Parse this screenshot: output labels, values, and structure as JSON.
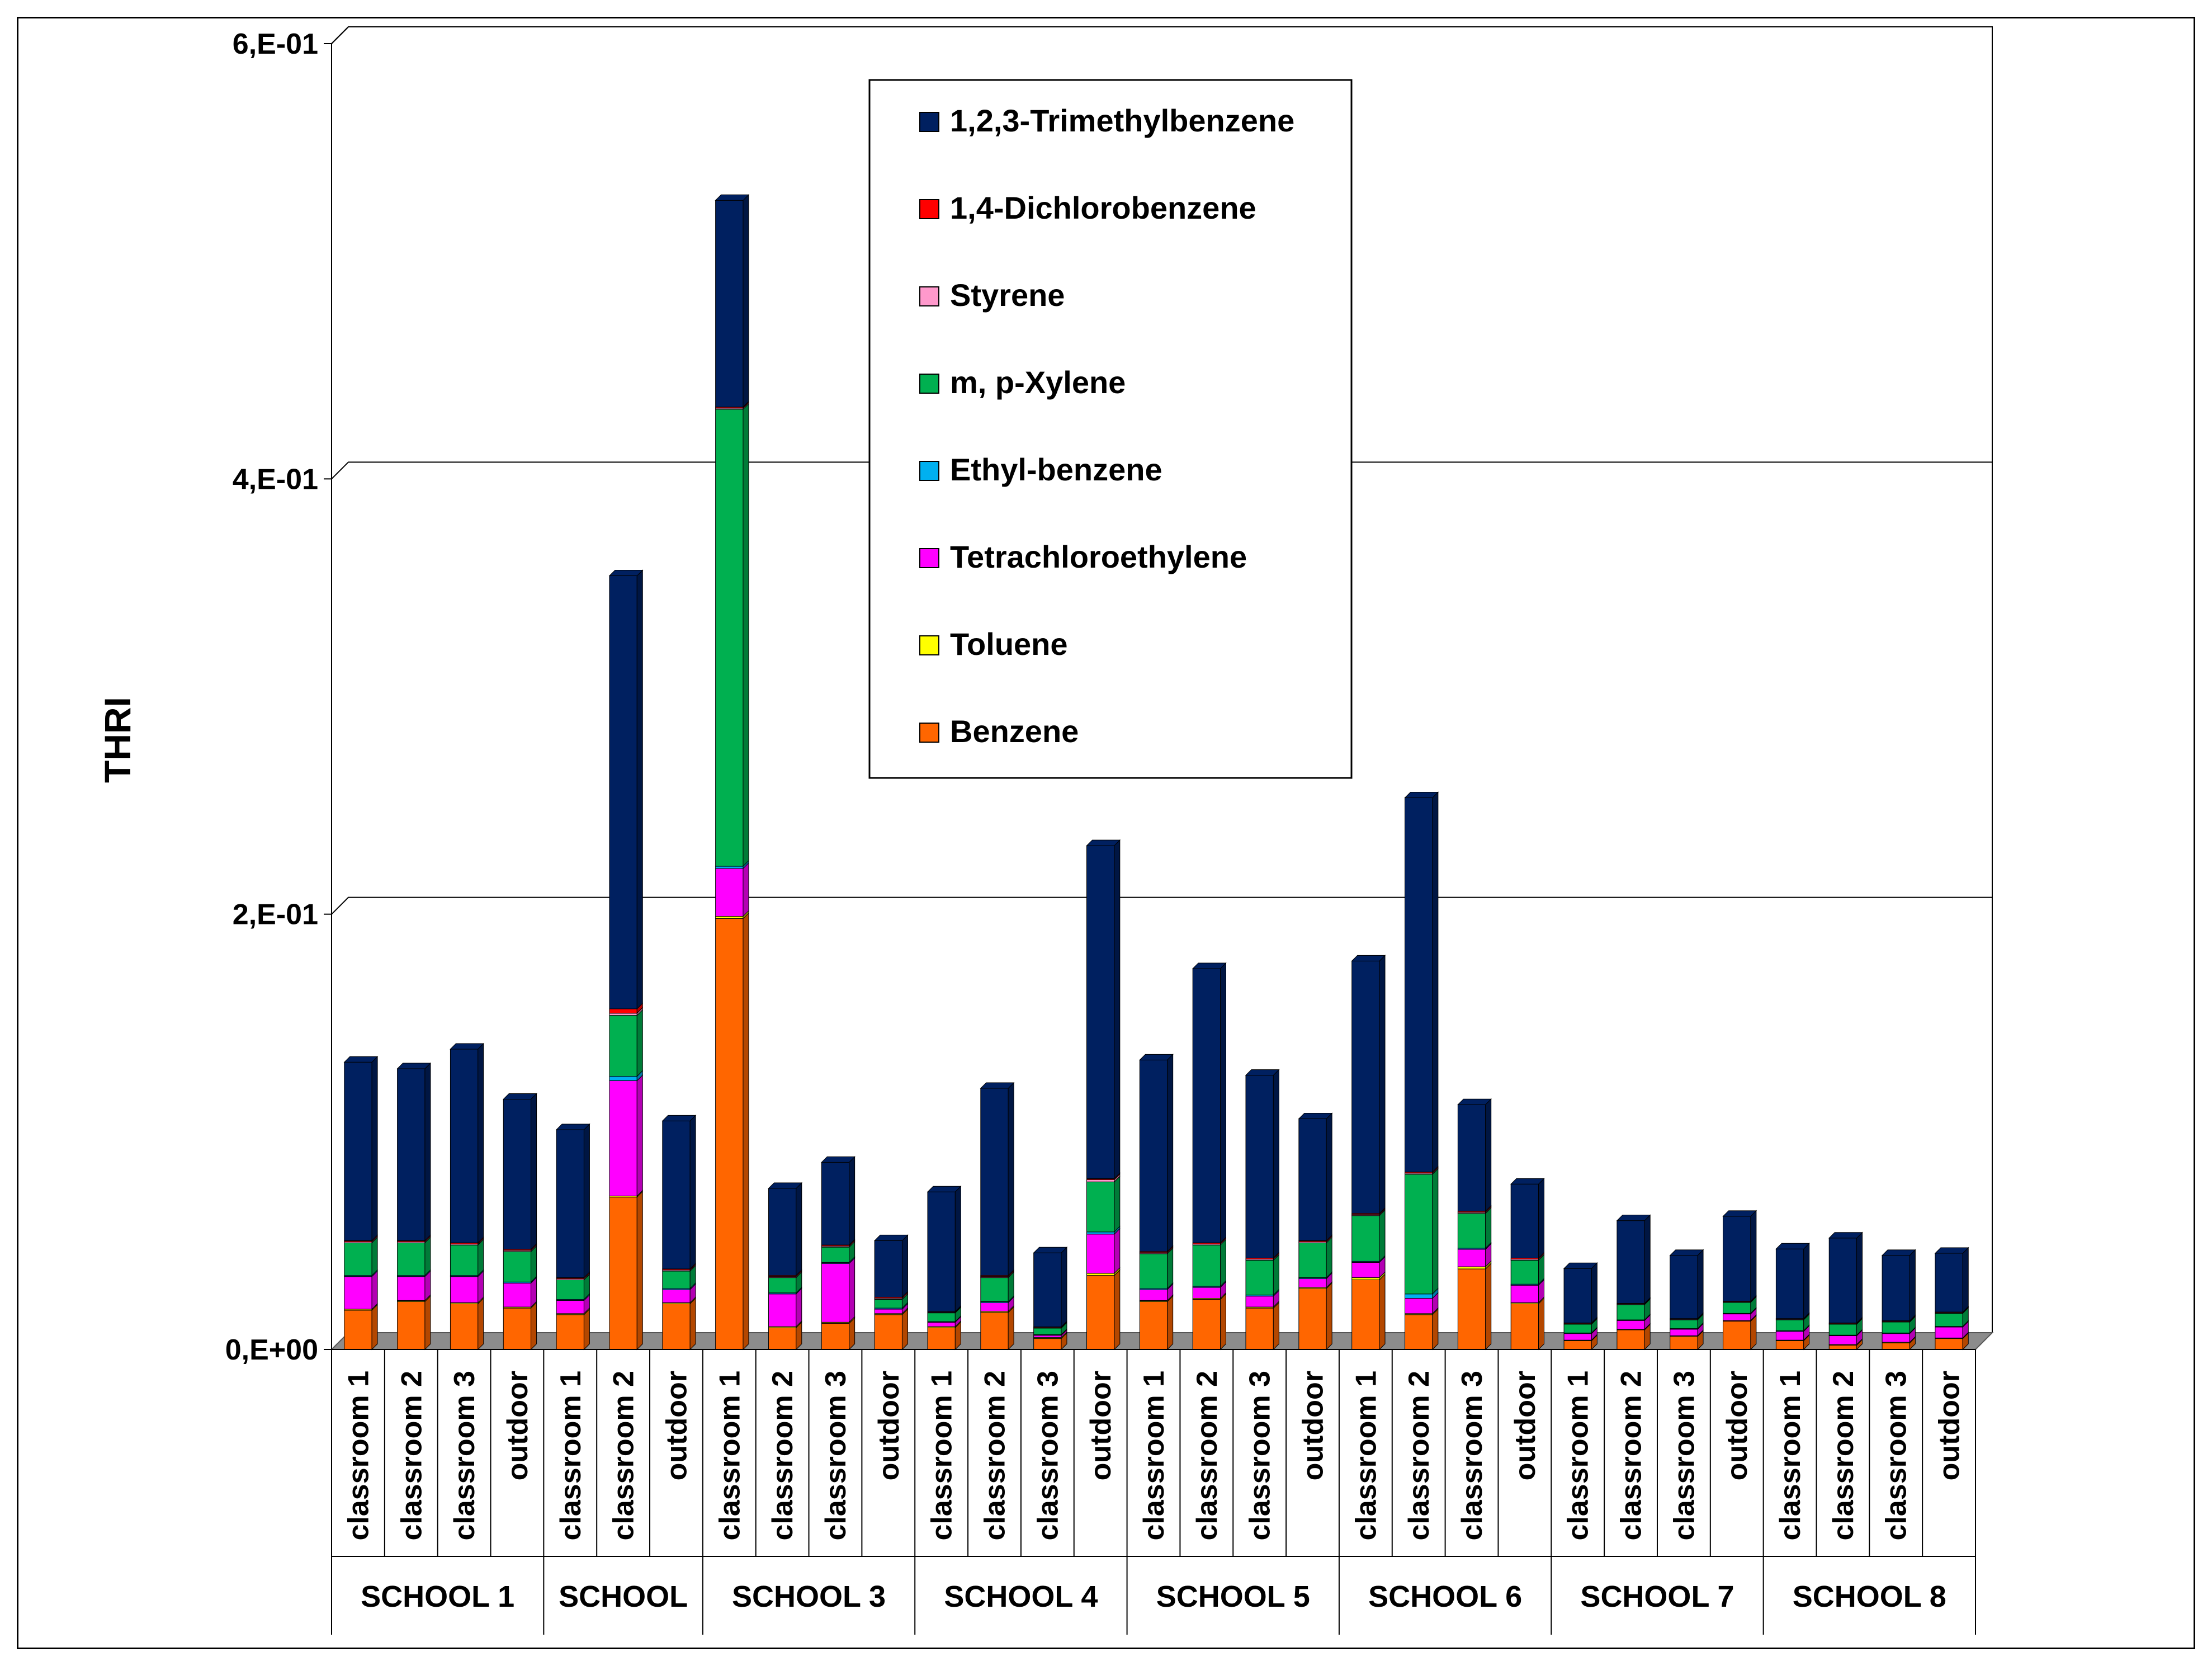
{
  "chart_data": {
    "type": "bar",
    "stacked": true,
    "ylabel": "THRI",
    "ylim": [
      0,
      0.6
    ],
    "yticks": [
      {
        "value": 0,
        "label": "0,E+00"
      },
      {
        "value": 0.2,
        "label": "2,E-01"
      },
      {
        "value": 0.4,
        "label": "4,E-01"
      },
      {
        "value": 0.6,
        "label": "6,E-01"
      }
    ],
    "gridlines": true,
    "legend_position": "top-center",
    "groups": [
      {
        "name": "SCHOOL 1",
        "categories": [
          "classroom 1",
          "classroom 2",
          "classroom 3",
          "outdoor"
        ]
      },
      {
        "name": "SCHOOL",
        "categories": [
          "classroom 1",
          "classroom 2",
          "outdoor"
        ]
      },
      {
        "name": "SCHOOL 3",
        "categories": [
          "classroom 1",
          "classroom 2",
          "classroom 3",
          "outdoor"
        ]
      },
      {
        "name": "SCHOOL 4",
        "categories": [
          "classroom 1",
          "classroom 2",
          "classroom 3",
          "outdoor"
        ]
      },
      {
        "name": "SCHOOL 5",
        "categories": [
          "classroom 1",
          "classroom 2",
          "classroom 3",
          "outdoor"
        ]
      },
      {
        "name": "SCHOOL 6",
        "categories": [
          "classroom 1",
          "classroom 2",
          "classroom 3",
          "outdoor"
        ]
      },
      {
        "name": "SCHOOL 7",
        "categories": [
          "classroom 1",
          "classroom 2",
          "classroom 3",
          "outdoor"
        ]
      },
      {
        "name": "SCHOOL 8",
        "categories": [
          "classroom 1",
          "classroom 2",
          "classroom 3",
          "outdoor"
        ]
      }
    ],
    "series": [
      {
        "name": "Benzene",
        "color": "#ff6600",
        "values": [
          0.018,
          0.022,
          0.021,
          0.019,
          0.016,
          0.07,
          0.021,
          0.198,
          0.01,
          0.012,
          0.016,
          0.01,
          0.017,
          0.005,
          0.034,
          0.022,
          0.023,
          0.019,
          0.028,
          0.032,
          0.016,
          0.037,
          0.021,
          0.004,
          0.009,
          0.006,
          0.013,
          0.004,
          0.002,
          0.003,
          0.005
        ]
      },
      {
        "name": "Toluene",
        "color": "#ffff00",
        "values": [
          0.0005,
          0.0005,
          0.0005,
          0.0005,
          0.0005,
          0.0005,
          0.0005,
          0.001,
          0.0005,
          0.0005,
          0.0005,
          0.0005,
          0.0005,
          0.0005,
          0.001,
          0.0005,
          0.0005,
          0.0005,
          0.0005,
          0.001,
          0.0005,
          0.001,
          0.0005,
          0.0003,
          0.0003,
          0.0003,
          0.0003,
          0.0003,
          0.0003,
          0.0003,
          0.0003
        ]
      },
      {
        "name": "Tetrachloroethylene",
        "color": "#ff00ff",
        "values": [
          0.015,
          0.011,
          0.012,
          0.011,
          0.006,
          0.053,
          0.006,
          0.022,
          0.015,
          0.027,
          0.002,
          0.002,
          0.004,
          0.001,
          0.018,
          0.005,
          0.005,
          0.005,
          0.004,
          0.007,
          0.007,
          0.008,
          0.008,
          0.003,
          0.004,
          0.003,
          0.003,
          0.004,
          0.004,
          0.004,
          0.005
        ]
      },
      {
        "name": "Ethyl-benzene",
        "color": "#00b0f0",
        "values": [
          0.0005,
          0.0005,
          0.0005,
          0.0005,
          0.0005,
          0.002,
          0.0005,
          0.001,
          0.0005,
          0.0005,
          0.0005,
          0.0003,
          0.0005,
          0.0003,
          0.001,
          0.0005,
          0.0005,
          0.0005,
          0.0005,
          0.0005,
          0.002,
          0.0005,
          0.0005,
          0.0003,
          0.0003,
          0.0003,
          0.0003,
          0.0003,
          0.0003,
          0.0003,
          0.0003
        ]
      },
      {
        "name": "m, p-Xylene",
        "color": "#00b050",
        "values": [
          0.015,
          0.015,
          0.014,
          0.014,
          0.009,
          0.028,
          0.008,
          0.21,
          0.007,
          0.007,
          0.004,
          0.004,
          0.011,
          0.003,
          0.023,
          0.016,
          0.019,
          0.016,
          0.016,
          0.021,
          0.055,
          0.016,
          0.011,
          0.004,
          0.007,
          0.004,
          0.005,
          0.005,
          0.005,
          0.005,
          0.006
        ]
      },
      {
        "name": "Styrene",
        "color": "#ff99cc",
        "values": [
          0.0005,
          0.0005,
          0.0005,
          0.0005,
          0.0005,
          0.001,
          0.0005,
          0.0005,
          0.0005,
          0.0005,
          0.0005,
          0.0003,
          0.0005,
          0.0003,
          0.001,
          0.0005,
          0.0005,
          0.0005,
          0.0005,
          0.0005,
          0.0005,
          0.0005,
          0.0005,
          0.0003,
          0.0003,
          0.0003,
          0.0003,
          0.0003,
          0.0003,
          0.0003,
          0.0003
        ]
      },
      {
        "name": "1,4-Dichlorobenzene",
        "color": "#ff0000",
        "values": [
          0.0005,
          0.0005,
          0.0005,
          0.0005,
          0.0005,
          0.002,
          0.0005,
          0.0005,
          0.0005,
          0.0005,
          0.0005,
          0.0003,
          0.0005,
          0.0003,
          0.0005,
          0.0005,
          0.0005,
          0.0005,
          0.0005,
          0.0005,
          0.0005,
          0.0005,
          0.0005,
          0.0003,
          0.0003,
          0.0003,
          0.0003,
          0.0003,
          0.0003,
          0.0003,
          0.0003
        ]
      },
      {
        "name": "1,2,3-Trimethylbenzene",
        "color": "#002060",
        "values": [
          0.082,
          0.079,
          0.089,
          0.069,
          0.068,
          0.199,
          0.068,
          0.095,
          0.04,
          0.038,
          0.026,
          0.055,
          0.086,
          0.034,
          0.153,
          0.088,
          0.126,
          0.084,
          0.056,
          0.116,
          0.172,
          0.049,
          0.034,
          0.025,
          0.038,
          0.029,
          0.039,
          0.032,
          0.039,
          0.03,
          0.027
        ]
      }
    ]
  }
}
